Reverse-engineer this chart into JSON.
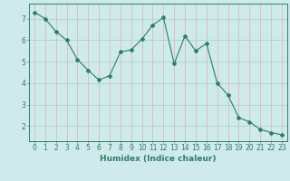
{
  "x": [
    0,
    1,
    2,
    3,
    4,
    5,
    6,
    7,
    8,
    9,
    10,
    11,
    12,
    13,
    14,
    15,
    16,
    17,
    18,
    19,
    20,
    21,
    22,
    23
  ],
  "y": [
    7.3,
    7.0,
    6.4,
    6.0,
    5.1,
    4.6,
    4.15,
    4.35,
    5.45,
    5.55,
    6.05,
    6.7,
    7.05,
    4.9,
    6.2,
    5.5,
    5.85,
    4.0,
    3.45,
    2.4,
    2.2,
    1.85,
    1.7,
    1.6
  ],
  "line_color": "#2e7d6e",
  "marker": "D",
  "marker_size": 2.0,
  "bg_color": "#ceeaea",
  "grid_color": "#aacece",
  "grid_red_color": "#e0b0b0",
  "xlabel": "Humidex (Indice chaleur)",
  "ylim": [
    1.3,
    7.7
  ],
  "xlim": [
    -0.5,
    23.5
  ],
  "yticks": [
    2,
    3,
    4,
    5,
    6,
    7
  ],
  "xticks": [
    0,
    1,
    2,
    3,
    4,
    5,
    6,
    7,
    8,
    9,
    10,
    11,
    12,
    13,
    14,
    15,
    16,
    17,
    18,
    19,
    20,
    21,
    22,
    23
  ],
  "tick_color": "#2e7d6e",
  "axis_color": "#2e7d6e",
  "label_fontsize": 6.5,
  "tick_fontsize": 5.5
}
